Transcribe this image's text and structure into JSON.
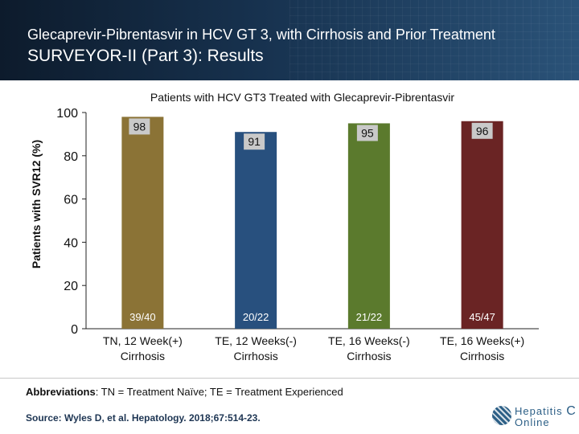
{
  "header": {
    "title": "Glecaprevir-Pibrentasvir in HCV GT 3, with Cirrhosis and Prior Treatment",
    "subtitle": "SURVEYOR-II (Part 3): Results"
  },
  "chart_data": {
    "type": "bar",
    "title": "Patients with HCV GT3 Treated with Glecaprevir-Pibrentasvir",
    "ylabel": "Patients with SVR12 (%)",
    "xlabel": "",
    "ylim": [
      0,
      100
    ],
    "yticks": [
      0,
      20,
      40,
      60,
      80,
      100
    ],
    "grid": false,
    "categories": [
      [
        "TN, 12 Week(+)",
        "Cirrhosis"
      ],
      [
        "TE, 12 Weeks(-)",
        "Cirrhosis"
      ],
      [
        "TE, 16 Weeks(-)",
        "Cirrhosis"
      ],
      [
        "TE, 16 Weeks(+)",
        "Cirrhosis"
      ]
    ],
    "values": [
      98,
      91,
      95,
      96
    ],
    "value_labels": [
      "98",
      "91",
      "95",
      "96"
    ],
    "counts": [
      "39/40",
      "20/22",
      "21/22",
      "45/47"
    ],
    "colors": [
      "#8b7336",
      "#28507e",
      "#5b7a2d",
      "#6a2424"
    ]
  },
  "footer": {
    "abbrev_label": "Abbreviations",
    "abbrev_text": ": TN = Treatment Naïve; TE = Treatment Experienced",
    "source": "Source: Wyles D, et al.  Hepatology. 2018;67:514-23.",
    "logo_line1": "Hepatitis",
    "logo_c": "C",
    "logo_line2": "Online"
  }
}
